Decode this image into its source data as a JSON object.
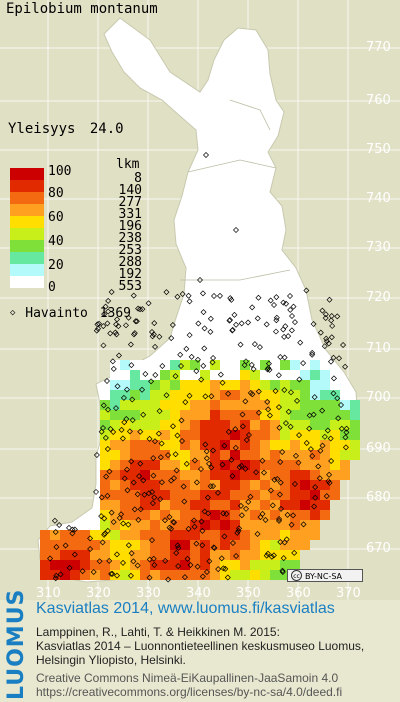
{
  "species_name": "Epilobium montanum",
  "frequency": {
    "label": "Yleisyys",
    "value": "24.0"
  },
  "legend": {
    "count_header": "lkm",
    "classes": [
      {
        "label": "100",
        "color": "#cc0000",
        "count": "8"
      },
      {
        "label": "",
        "color": "#e22a00",
        "count": "140"
      },
      {
        "label": "80",
        "color": "#f46a10",
        "count": "277"
      },
      {
        "label": "",
        "color": "#ffa020",
        "count": "331"
      },
      {
        "label": "60",
        "color": "#ffde00",
        "count": "196"
      },
      {
        "label": "",
        "color": "#c8ef1a",
        "count": "238"
      },
      {
        "label": "40",
        "color": "#7fe03a",
        "count": "253"
      },
      {
        "label": "",
        "color": "#66e8a0",
        "count": "288"
      },
      {
        "label": "20",
        "color": "#b4fafa",
        "count": "192"
      },
      {
        "label": "0",
        "color": "#ffffff",
        "count": "553"
      }
    ],
    "observation": {
      "label": "Havainto",
      "count": "1369"
    }
  },
  "y_ticks": [
    "770",
    "760",
    "750",
    "740",
    "730",
    "720",
    "710",
    "700",
    "690",
    "680",
    "670"
  ],
  "x_ticks": [
    "310",
    "320",
    "330",
    "340",
    "350",
    "360",
    "370"
  ],
  "license_badge": {
    "icon": "cc-icon",
    "text": "BY-NC-SA"
  },
  "footer": {
    "logo": "LUOMUS",
    "title": "Kasviatlas 2014, www.luomus.fi/kasviatlas",
    "citation_line1": "Lamppinen, R., Lahti, T. & Heikkinen M. 2015:",
    "citation_line2": "Kasviatlas 2014 – Luonnontieteellinen keskusmuseo Luomus,",
    "citation_line3": "Helsingin Yliopisto, Helsinki.",
    "license_line1": "Creative Commons Nimeä-EiKaupallinen-JaaSamoin 4.0",
    "license_line2": "https://creativecommons.org/licenses/by-nc-sa/4.0/deed.fi"
  }
}
